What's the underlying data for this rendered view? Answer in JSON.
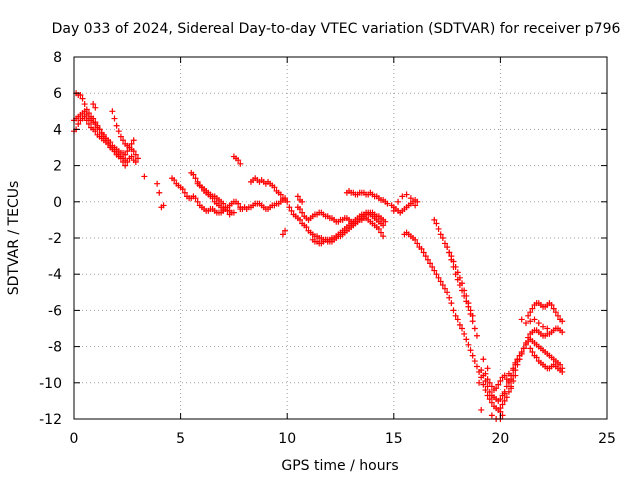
{
  "chart_data": {
    "type": "scatter",
    "title": "Day 033 of 2024, Sidereal Day-to-day VTEC variation (SDTVAR) for receiver p796",
    "xlabel": "GPS time / hours",
    "ylabel": "SDTVAR / TECUs",
    "xlim": [
      0,
      25
    ],
    "ylim": [
      -12,
      8
    ],
    "xticks": [
      0,
      5,
      10,
      15,
      20,
      25
    ],
    "yticks": [
      -12,
      -10,
      -8,
      -6,
      -4,
      -2,
      0,
      2,
      4,
      6,
      8
    ],
    "grid": true,
    "marker": "+",
    "color": "#ff0000",
    "series": [
      {
        "name": "p796",
        "x": [
          0.0,
          0.1,
          0.2,
          0.3,
          0.4,
          0.5,
          0.6,
          0.7,
          0.8,
          0.9,
          1.0,
          1.1,
          1.2,
          1.3,
          1.4,
          1.5,
          1.6,
          1.7,
          1.8,
          1.9,
          2.0,
          2.1,
          2.2,
          2.3,
          2.4,
          2.5,
          2.6,
          2.7,
          2.8,
          2.9,
          0.0,
          0.1,
          0.2,
          0.3,
          0.4,
          0.5,
          0.6,
          0.7,
          0.8,
          0.9,
          1.0,
          1.1,
          1.2,
          1.3,
          1.4,
          1.5,
          1.6,
          1.7,
          1.8,
          1.9,
          2.0,
          2.1,
          2.2,
          2.3,
          2.4,
          2.5,
          2.6,
          2.7,
          2.8,
          0.1,
          0.2,
          0.3,
          0.4,
          0.5,
          0.6,
          0.7,
          0.8,
          0.9,
          1.0,
          1.1,
          1.2,
          1.3,
          1.4,
          1.5,
          1.6,
          1.7,
          1.8,
          1.9,
          2.0,
          2.1,
          2.2,
          2.3,
          2.4,
          1.8,
          1.9,
          2.0,
          2.1,
          2.2,
          2.3,
          2.4,
          2.5,
          2.6,
          2.7,
          2.8,
          2.9,
          3.0,
          0.9,
          1.0,
          3.3,
          4.0,
          4.1,
          4.2,
          3.9,
          4.6,
          4.7,
          4.8,
          4.9,
          5.0,
          5.1,
          5.2,
          5.3,
          5.4,
          5.5,
          5.6,
          5.7,
          5.8,
          5.9,
          6.0,
          6.1,
          6.2,
          6.3,
          6.4,
          6.5,
          6.6,
          6.7,
          6.8,
          6.9,
          7.0,
          7.1,
          7.2,
          7.3,
          7.4,
          7.5,
          7.6,
          7.7,
          7.8,
          5.5,
          5.6,
          5.7,
          5.8,
          5.9,
          6.0,
          6.1,
          6.2,
          6.3,
          6.4,
          6.5,
          6.6,
          6.7,
          6.8,
          6.9,
          7.0,
          7.1,
          7.2,
          7.3,
          7.4,
          7.5,
          5.8,
          5.9,
          6.0,
          6.1,
          6.2,
          6.3,
          6.4,
          6.5,
          6.6,
          6.7,
          6.8,
          6.9,
          7.0,
          7.1,
          7.2,
          7.3,
          7.5,
          7.6,
          7.7,
          7.8,
          7.8,
          7.9,
          8.0,
          8.1,
          8.2,
          8.3,
          8.4,
          8.5,
          8.6,
          8.7,
          8.8,
          8.9,
          9.0,
          9.1,
          9.2,
          9.3,
          9.4,
          9.5,
          9.6,
          9.7,
          9.8,
          9.9,
          8.3,
          8.4,
          8.5,
          8.6,
          8.7,
          8.8,
          8.9,
          9.0,
          9.1,
          9.2,
          9.3,
          9.4,
          9.5,
          9.6,
          9.7,
          9.8,
          9.9,
          10.0,
          10.1,
          10.2,
          9.8,
          9.9,
          10.3,
          10.4,
          10.5,
          10.6,
          10.7,
          10.8,
          10.9,
          11.0,
          11.1,
          11.2,
          11.3,
          11.4,
          11.5,
          11.6,
          11.7,
          11.8,
          11.9,
          12.0,
          12.1,
          12.2,
          12.3,
          12.4,
          12.5,
          12.6,
          12.7,
          12.8,
          12.9,
          13.0,
          13.1,
          13.2,
          13.3,
          13.4,
          13.5,
          13.6,
          13.7,
          13.8,
          13.9,
          14.0,
          14.1,
          14.2,
          14.3,
          14.4,
          14.5,
          10.5,
          10.6,
          10.7,
          10.8,
          10.9,
          11.0,
          11.1,
          11.2,
          11.3,
          11.4,
          11.5,
          11.6,
          11.7,
          11.8,
          11.9,
          12.0,
          12.1,
          12.2,
          12.3,
          12.4,
          12.5,
          12.6,
          12.7,
          12.8,
          12.9,
          13.0,
          13.1,
          13.2,
          13.3,
          13.4,
          13.5,
          13.6,
          13.7,
          13.8,
          13.9,
          14.0,
          14.1,
          14.2,
          14.3,
          14.4,
          14.5,
          14.6,
          11.2,
          11.3,
          11.4,
          11.5,
          11.6,
          11.7,
          11.8,
          11.9,
          12.0,
          12.1,
          12.2,
          12.3,
          12.4,
          12.5,
          12.6,
          12.7,
          12.8,
          12.9,
          13.0,
          13.1,
          13.2,
          13.3,
          13.4,
          13.5,
          13.6,
          13.7,
          13.8,
          13.9,
          14.0,
          14.1,
          14.2,
          14.3,
          14.4,
          14.5,
          10.5,
          10.6,
          10.7,
          12.8,
          12.9,
          13.0,
          13.1,
          13.2,
          13.3,
          13.4,
          13.5,
          13.6,
          13.7,
          13.8,
          13.9,
          14.0,
          14.1,
          14.2,
          14.3,
          14.4,
          14.5,
          14.6,
          14.7,
          14.9,
          15.0,
          15.1,
          15.2,
          15.3,
          15.4,
          15.5,
          15.6,
          15.7,
          15.8,
          15.9,
          16.0,
          16.1,
          15.0,
          15.2,
          15.4,
          15.6,
          15.8,
          16.0,
          15.5,
          15.6,
          15.7,
          15.8,
          15.9,
          16.0,
          16.1,
          16.2,
          16.3,
          16.4,
          16.5,
          16.6,
          16.7,
          16.8,
          16.9,
          17.0,
          17.1,
          17.2,
          17.3,
          17.4,
          17.5,
          17.6,
          17.7,
          17.8,
          17.9,
          18.0,
          18.1,
          18.2,
          18.3,
          18.4,
          18.5,
          18.6,
          18.7,
          18.8,
          18.9,
          19.0,
          19.1,
          16.9,
          17.0,
          17.1,
          17.2,
          17.3,
          17.4,
          17.5,
          17.6,
          17.7,
          17.8,
          17.9,
          18.0,
          18.1,
          18.2,
          18.3,
          18.4,
          18.5,
          18.6,
          18.7,
          17.5,
          17.6,
          17.7,
          17.8,
          17.9,
          18.0,
          18.1,
          18.2,
          18.3,
          18.4,
          18.5,
          18.6,
          18.7,
          18.8,
          18.9,
          19.1,
          19.2,
          19.3,
          19.4,
          19.5,
          19.6,
          19.7,
          19.8,
          19.9,
          20.0,
          20.1,
          20.2,
          20.3,
          20.4,
          20.5,
          20.6,
          20.7,
          20.8,
          19.2,
          19.3,
          19.4,
          19.5,
          19.6,
          19.7,
          19.8,
          19.9,
          20.0,
          20.1,
          20.2,
          20.3,
          20.4,
          20.5,
          20.6,
          20.7,
          19.3,
          19.4,
          19.5,
          19.6,
          19.7,
          19.8,
          19.9,
          20.0,
          20.1,
          20.2,
          20.3,
          20.4,
          20.5,
          19.2,
          19.4,
          19.6,
          19.8,
          20.0,
          20.2,
          20.4,
          20.6,
          20.8,
          19.0,
          19.1,
          20.0,
          20.1,
          20.7,
          20.8,
          20.9,
          21.0,
          21.1,
          21.2,
          21.3,
          21.4,
          21.5,
          21.6,
          21.7,
          21.8,
          21.9,
          22.0,
          22.1,
          22.2,
          22.3,
          22.4,
          22.5,
          22.6,
          22.7,
          22.8,
          22.9,
          20.5,
          20.6,
          20.7,
          20.8,
          20.9,
          21.0,
          21.1,
          21.2,
          21.3,
          21.4,
          21.5,
          21.6,
          21.7,
          21.8,
          21.9,
          22.0,
          22.1,
          22.2,
          22.3,
          22.4,
          22.5,
          22.6,
          22.7,
          22.8,
          22.9,
          21.3,
          21.4,
          21.5,
          21.6,
          21.7,
          21.8,
          21.9,
          22.0,
          22.1,
          22.2,
          22.3,
          22.4,
          22.5,
          22.6,
          22.7,
          22.8,
          22.9,
          21.0,
          21.2,
          21.4,
          21.6,
          21.8,
          22.0,
          22.2,
          21.4,
          21.5,
          21.6,
          21.7,
          21.8,
          21.9,
          22.0,
          22.1,
          22.2,
          22.3,
          22.4,
          22.5,
          22.6,
          22.7,
          22.8,
          22.9
        ],
        "y": [
          4.5,
          4.6,
          4.7,
          4.8,
          4.6,
          4.7,
          4.5,
          4.3,
          4.1,
          4.0,
          3.9,
          3.7,
          3.6,
          3.5,
          3.4,
          3.3,
          3.2,
          3.0,
          2.9,
          2.8,
          2.7,
          2.6,
          2.5,
          2.4,
          2.3,
          2.2,
          2.4,
          2.5,
          2.3,
          2.2,
          3.9,
          4.0,
          4.3,
          4.5,
          4.9,
          5.0,
          4.8,
          4.6,
          4.5,
          4.4,
          4.3,
          4.1,
          4.0,
          3.8,
          3.6,
          3.5,
          3.4,
          3.3,
          3.1,
          3.0,
          2.9,
          2.8,
          2.7,
          2.7,
          2.6,
          2.8,
          3.0,
          3.2,
          3.4,
          6.0,
          5.9,
          5.9,
          5.7,
          5.4,
          5.1,
          4.9,
          4.7,
          4.6,
          4.4,
          4.2,
          4.0,
          3.8,
          3.7,
          3.5,
          3.3,
          3.1,
          3.0,
          2.8,
          2.6,
          2.5,
          2.4,
          2.2,
          2.0,
          5.0,
          4.6,
          4.2,
          3.9,
          3.6,
          3.4,
          3.2,
          3.1,
          3.0,
          2.9,
          2.8,
          2.6,
          2.4,
          5.4,
          5.2,
          1.4,
          0.5,
          -0.3,
          -0.2,
          1.0,
          1.3,
          1.2,
          1.0,
          0.9,
          0.8,
          0.7,
          0.5,
          0.3,
          0.2,
          0.2,
          0.3,
          0.2,
          0.0,
          -0.2,
          -0.3,
          -0.4,
          -0.5,
          -0.5,
          -0.4,
          -0.4,
          -0.5,
          -0.6,
          -0.6,
          -0.6,
          -0.5,
          -0.4,
          -0.3,
          -0.2,
          -0.1,
          0.0,
          0.0,
          -0.1,
          -0.3,
          1.6,
          1.5,
          1.3,
          1.1,
          0.9,
          0.8,
          0.6,
          0.5,
          0.4,
          0.3,
          0.2,
          0.0,
          -0.1,
          -0.2,
          -0.3,
          -0.4,
          -0.4,
          -0.5,
          -0.5,
          -0.6,
          -0.6,
          1.0,
          0.9,
          0.8,
          0.7,
          0.6,
          0.5,
          0.4,
          0.3,
          0.3,
          0.2,
          0.1,
          0.0,
          -0.1,
          -0.3,
          -0.5,
          -0.7,
          2.5,
          2.4,
          2.3,
          2.1,
          -0.4,
          -0.4,
          -0.3,
          -0.4,
          -0.3,
          -0.3,
          -0.2,
          -0.1,
          -0.1,
          -0.1,
          -0.2,
          -0.3,
          -0.4,
          -0.4,
          -0.3,
          -0.2,
          -0.2,
          -0.1,
          -0.1,
          0.0,
          0.1,
          0.2,
          1.1,
          1.2,
          1.3,
          1.2,
          1.1,
          1.2,
          1.1,
          1.0,
          1.1,
          1.0,
          0.9,
          0.8,
          0.6,
          0.5,
          0.4,
          0.2,
          0.1,
          0.0,
          -0.3,
          -0.5,
          -1.8,
          -1.6,
          -0.7,
          -0.8,
          -0.9,
          -1.0,
          -1.2,
          -1.3,
          -1.4,
          -1.6,
          -1.7,
          -1.8,
          -1.9,
          -1.9,
          -2.0,
          -2.0,
          -2.1,
          -2.1,
          -2.2,
          -2.2,
          -2.2,
          -2.1,
          -2.0,
          -1.9,
          -1.9,
          -1.8,
          -1.7,
          -1.6,
          -1.5,
          -1.4,
          -1.3,
          -1.2,
          -1.1,
          -1.0,
          -1.0,
          -0.9,
          -0.9,
          -1.0,
          -1.1,
          -1.2,
          -1.3,
          -1.4,
          -1.5,
          -1.7,
          -1.9,
          -0.3,
          -0.4,
          -0.6,
          -0.8,
          -0.9,
          -1.0,
          -0.9,
          -0.8,
          -0.7,
          -0.7,
          -0.6,
          -0.6,
          -0.7,
          -0.8,
          -0.8,
          -0.9,
          -0.9,
          -1.0,
          -1.1,
          -1.1,
          -1.0,
          -1.0,
          -0.9,
          -0.9,
          -1.0,
          -1.1,
          -1.2,
          -1.2,
          -1.1,
          -1.0,
          -0.9,
          -0.8,
          -0.7,
          -0.7,
          -0.6,
          -0.6,
          -0.7,
          -0.8,
          -0.8,
          -0.9,
          -1.0,
          -1.1,
          -2.1,
          -2.2,
          -2.2,
          -2.3,
          -2.3,
          -2.2,
          -2.1,
          -2.1,
          -2.1,
          -2.0,
          -2.0,
          -1.9,
          -1.8,
          -1.7,
          -1.6,
          -1.5,
          -1.4,
          -1.3,
          -1.2,
          -1.1,
          -1.0,
          -0.9,
          -0.8,
          -0.7,
          -0.7,
          -0.6,
          -0.6,
          -0.7,
          -0.8,
          -0.9,
          -1.0,
          -1.1,
          -1.2,
          -1.3,
          0.3,
          0.1,
          0.0,
          0.5,
          0.6,
          0.5,
          0.5,
          0.4,
          0.4,
          0.5,
          0.5,
          0.5,
          0.4,
          0.4,
          0.5,
          0.4,
          0.3,
          0.3,
          0.2,
          0.1,
          0.1,
          0.0,
          -0.1,
          -0.2,
          -0.3,
          -0.4,
          -0.5,
          -0.6,
          -0.5,
          -0.4,
          -0.3,
          -0.2,
          -0.1,
          0.0,
          0.1,
          0.0,
          -0.5,
          0.0,
          0.3,
          0.4,
          0.2,
          -0.2,
          -1.8,
          -1.7,
          -1.8,
          -1.9,
          -2.0,
          -2.1,
          -2.3,
          -2.5,
          -2.6,
          -2.8,
          -3.0,
          -3.2,
          -3.4,
          -3.6,
          -3.8,
          -4.0,
          -4.2,
          -4.4,
          -4.6,
          -4.8,
          -5.0,
          -5.3,
          -5.6,
          -6.0,
          -6.3,
          -6.5,
          -6.8,
          -7.0,
          -7.3,
          -7.6,
          -7.9,
          -8.2,
          -8.5,
          -8.8,
          -9.1,
          -9.4,
          -9.7,
          -1.0,
          -1.2,
          -1.5,
          -1.8,
          -2.0,
          -2.3,
          -2.5,
          -2.8,
          -3.0,
          -3.3,
          -3.6,
          -3.9,
          -4.2,
          -4.5,
          -4.9,
          -5.2,
          -5.6,
          -6.0,
          -6.3,
          -2.5,
          -2.8,
          -3.2,
          -3.6,
          -4.0,
          -4.3,
          -4.6,
          -4.9,
          -5.2,
          -5.5,
          -5.8,
          -6.2,
          -6.6,
          -7.0,
          -7.4,
          -9.3,
          -9.6,
          -9.9,
          -10.2,
          -10.5,
          -10.7,
          -10.8,
          -10.9,
          -11.0,
          -10.9,
          -10.7,
          -10.5,
          -10.2,
          -9.9,
          -9.6,
          -9.3,
          -9.0,
          -8.7,
          -10.1,
          -10.4,
          -10.7,
          -10.9,
          -11.1,
          -11.3,
          -11.4,
          -11.5,
          -11.4,
          -11.2,
          -11.0,
          -10.8,
          -10.5,
          -10.2,
          -9.9,
          -9.6,
          -9.5,
          -9.8,
          -10.0,
          -10.2,
          -10.4,
          -10.3,
          -10.1,
          -9.9,
          -9.7,
          -9.6,
          -9.8,
          -10.0,
          -10.3,
          -8.7,
          -9.2,
          -11.8,
          -12.0,
          -11.6,
          -10.6,
          -9.5,
          -9.2,
          -8.8,
          -10.0,
          -11.5,
          -12.0,
          -11.8,
          -8.9,
          -8.7,
          -8.5,
          -8.3,
          -8.1,
          -7.9,
          -7.7,
          -7.6,
          -7.7,
          -7.8,
          -7.9,
          -8.0,
          -8.1,
          -8.2,
          -8.3,
          -8.4,
          -8.5,
          -8.6,
          -8.7,
          -8.8,
          -8.9,
          -9.0,
          -9.2,
          -9.8,
          -9.6,
          -9.3,
          -9.0,
          -8.7,
          -8.4,
          -8.1,
          -7.8,
          -7.5,
          -7.3,
          -7.2,
          -7.1,
          -7.1,
          -7.2,
          -7.3,
          -7.4,
          -7.4,
          -7.3,
          -7.3,
          -7.2,
          -7.1,
          -7.0,
          -7.0,
          -7.1,
          -7.2,
          -6.3,
          -6.1,
          -5.9,
          -5.7,
          -5.6,
          -5.6,
          -5.7,
          -5.8,
          -5.8,
          -5.7,
          -5.6,
          -5.7,
          -5.9,
          -6.1,
          -6.3,
          -6.5,
          -6.6,
          -6.5,
          -6.7,
          -6.6,
          -6.5,
          -6.7,
          -6.9,
          -7.0,
          -8.1,
          -8.3,
          -8.5,
          -8.6,
          -8.8,
          -8.9,
          -9.0,
          -9.1,
          -9.2,
          -9.2,
          -9.1,
          -9.0,
          -9.1,
          -9.2,
          -9.3,
          -9.4
        ]
      }
    ]
  }
}
